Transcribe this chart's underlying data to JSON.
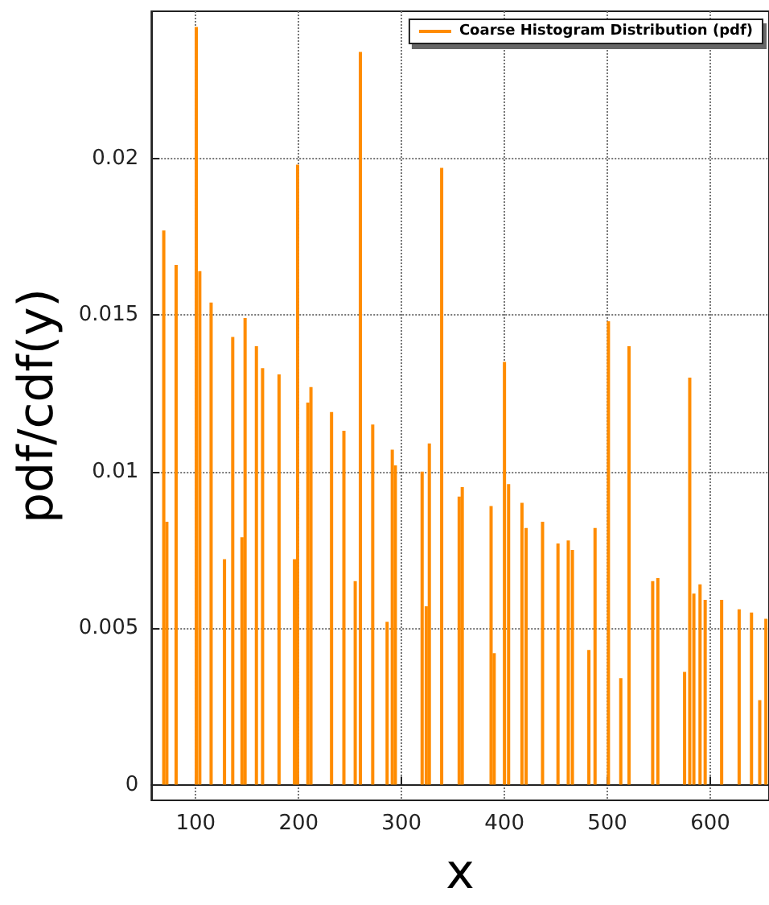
{
  "chart_data": {
    "type": "bar",
    "xlabel": "x",
    "ylabel": "pdf/cdf(y)",
    "x": [
      69,
      72,
      81,
      100.6,
      104,
      115,
      128,
      136,
      145,
      148,
      159,
      165,
      181,
      196,
      199,
      209,
      212,
      232,
      244,
      255,
      260,
      272,
      286,
      291,
      294,
      320,
      324,
      327,
      339,
      356,
      359,
      387,
      390,
      400,
      404,
      417,
      421,
      437,
      452,
      462,
      466,
      482,
      488,
      501,
      513,
      521,
      544,
      549,
      575,
      580,
      584,
      590,
      595,
      611,
      628,
      640,
      648,
      654
    ],
    "series": [
      {
        "name": "Coarse Histogram Distribution (pdf)",
        "color": "#ff8c00",
        "values": [
          0.0177,
          0.0084,
          0.0166,
          0.0242,
          0.0164,
          0.0154,
          0.0072,
          0.0143,
          0.0079,
          0.0149,
          0.014,
          0.0133,
          0.0131,
          0.0072,
          0.0198,
          0.0122,
          0.0127,
          0.0119,
          0.0113,
          0.0065,
          0.0234,
          0.0115,
          0.0052,
          0.0107,
          0.0102,
          0.01,
          0.0057,
          0.0109,
          0.0197,
          0.0092,
          0.0095,
          0.0089,
          0.0042,
          0.0135,
          0.0096,
          0.009,
          0.0082,
          0.0084,
          0.0077,
          0.0078,
          0.0075,
          0.0043,
          0.0082,
          0.0148,
          0.0034,
          0.014,
          0.0065,
          0.0066,
          0.0036,
          0.013,
          0.0061,
          0.0064,
          0.0059,
          0.0059,
          0.0056,
          0.0055,
          0.0027,
          0.0053
        ]
      }
    ],
    "xlim": [
      57,
      657
    ],
    "xticks": [
      100,
      200,
      300,
      400,
      500,
      600
    ],
    "ylim": [
      -0.0005,
      0.0247
    ],
    "yticks": [
      0,
      0.005,
      0.01,
      0.015,
      0.02
    ],
    "grid": true,
    "legend": "top right"
  }
}
